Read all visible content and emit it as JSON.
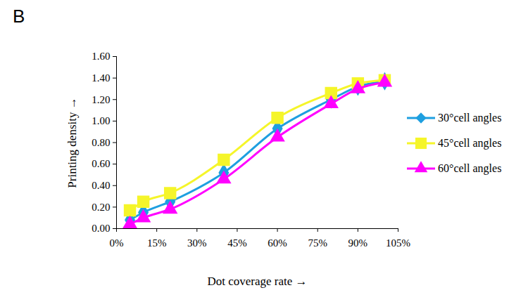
{
  "chart_data": {
    "type": "line",
    "title": "B",
    "x_label": "Dot coverage rate",
    "y_label": "Printing density",
    "x": [
      5,
      10,
      20,
      40,
      60,
      80,
      90,
      100
    ],
    "series": [
      {
        "name": "30°cell angles",
        "color": "#1e9fe0",
        "marker": "diamond",
        "values": [
          0.08,
          0.15,
          0.25,
          0.52,
          0.93,
          1.2,
          1.32,
          1.37
        ]
      },
      {
        "name": "45°cell angles",
        "color": "#f5f52a",
        "marker": "square",
        "values": [
          0.17,
          0.25,
          0.33,
          0.64,
          1.03,
          1.26,
          1.35,
          1.38
        ]
      },
      {
        "name": "60°cell angles",
        "color": "#ff00ff",
        "marker": "triangle",
        "values": [
          0.04,
          0.1,
          0.18,
          0.46,
          0.85,
          1.16,
          1.3,
          1.36
        ]
      }
    ],
    "xlim": [
      0,
      105
    ],
    "xticks": [
      {
        "value": 0,
        "label": "0%"
      },
      {
        "value": 15,
        "label": "15%"
      },
      {
        "value": 30,
        "label": "30%"
      },
      {
        "value": 45,
        "label": "45%"
      },
      {
        "value": 60,
        "label": "60%"
      },
      {
        "value": 75,
        "label": "75%"
      },
      {
        "value": 90,
        "label": "90%"
      },
      {
        "value": 105,
        "label": "105%"
      }
    ],
    "ylim": [
      0,
      1.6
    ],
    "yticks": [
      {
        "value": 0,
        "label": "0.00"
      },
      {
        "value": 0.2,
        "label": "0.20"
      },
      {
        "value": 0.4,
        "label": "0.40"
      },
      {
        "value": 0.6,
        "label": "0.60"
      },
      {
        "value": 0.8,
        "label": "0.80"
      },
      {
        "value": 1.0,
        "label": "1.00"
      },
      {
        "value": 1.2,
        "label": "1.20"
      },
      {
        "value": 1.4,
        "label": "1.40"
      },
      {
        "value": 1.6,
        "label": "1.60"
      }
    ],
    "grid": false,
    "legend": "right"
  }
}
